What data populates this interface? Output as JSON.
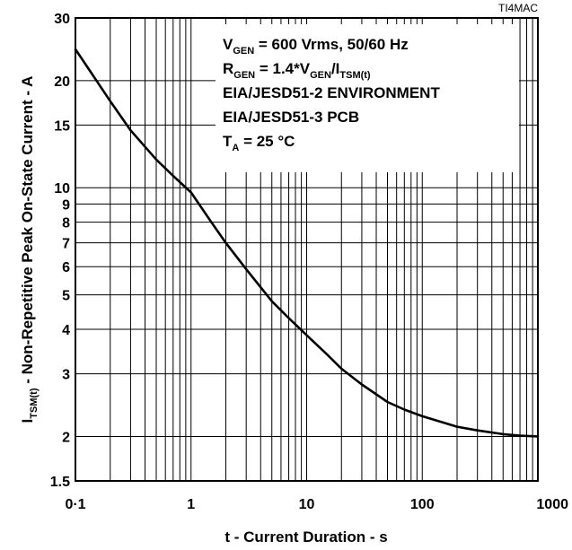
{
  "figure_code": "TI4MAC",
  "chart_data": {
    "type": "line",
    "xlabel": "t - Current Duration - s",
    "ylabel": {
      "main": "I",
      "sub": "TSM(t)",
      "rest": " - Non-Repetitive Peak On-State Current - A"
    },
    "x_scale": "log",
    "y_scale": "log",
    "xlim": [
      0.1,
      1000
    ],
    "ylim": [
      1.5,
      30
    ],
    "grid": true,
    "x_ticks": [
      {
        "v": 0.1,
        "label": "0·1"
      },
      {
        "v": 1,
        "label": "1"
      },
      {
        "v": 10,
        "label": "10"
      },
      {
        "v": 100,
        "label": "100"
      },
      {
        "v": 1000,
        "label": "1000"
      }
    ],
    "y_ticks": [
      {
        "v": 1.5,
        "label": "1.5"
      },
      {
        "v": 2,
        "label": "2"
      },
      {
        "v": 3,
        "label": "3"
      },
      {
        "v": 4,
        "label": "4"
      },
      {
        "v": 5,
        "label": "5"
      },
      {
        "v": 6,
        "label": "6"
      },
      {
        "v": 7,
        "label": "7"
      },
      {
        "v": 8,
        "label": "8"
      },
      {
        "v": 9,
        "label": "9"
      },
      {
        "v": 10,
        "label": "10"
      },
      {
        "v": 15,
        "label": "15"
      },
      {
        "v": 20,
        "label": "20"
      },
      {
        "v": 30,
        "label": "30"
      }
    ],
    "series": [
      {
        "x": [
          0.1,
          0.2,
          0.3,
          0.5,
          0.7,
          1,
          1.5,
          2,
          3,
          5,
          7,
          10,
          15,
          20,
          30,
          50,
          70,
          100,
          200,
          300,
          500,
          700,
          1000
        ],
        "values": [
          24.5,
          17.5,
          14.5,
          12.0,
          10.8,
          9.7,
          8.0,
          7.0,
          5.9,
          4.8,
          4.3,
          3.85,
          3.4,
          3.1,
          2.8,
          2.5,
          2.38,
          2.28,
          2.13,
          2.08,
          2.03,
          2.01,
          2.0
        ]
      }
    ],
    "annotations": [
      {
        "line": 1,
        "parts": [
          {
            "t": "V"
          },
          {
            "t": "GEN",
            "sub": true
          },
          {
            "t": " = 600 Vrms, 50/60 Hz"
          }
        ]
      },
      {
        "line": 2,
        "parts": [
          {
            "t": "R"
          },
          {
            "t": "GEN",
            "sub": true
          },
          {
            "t": " = 1.4*V"
          },
          {
            "t": "GEN",
            "sub": true
          },
          {
            "t": "/I"
          },
          {
            "t": "TSM(t)",
            "sub": true
          }
        ]
      },
      {
        "line": 3,
        "parts": [
          {
            "t": "EIA/JESD51-2 ENVIRONMENT"
          }
        ]
      },
      {
        "line": 4,
        "parts": [
          {
            "t": "EIA/JESD51-3 PCB"
          }
        ]
      },
      {
        "line": 5,
        "parts": [
          {
            "t": "T"
          },
          {
            "t": "A",
            "sub": true
          },
          {
            "t": " = 25  °C"
          }
        ]
      }
    ]
  }
}
